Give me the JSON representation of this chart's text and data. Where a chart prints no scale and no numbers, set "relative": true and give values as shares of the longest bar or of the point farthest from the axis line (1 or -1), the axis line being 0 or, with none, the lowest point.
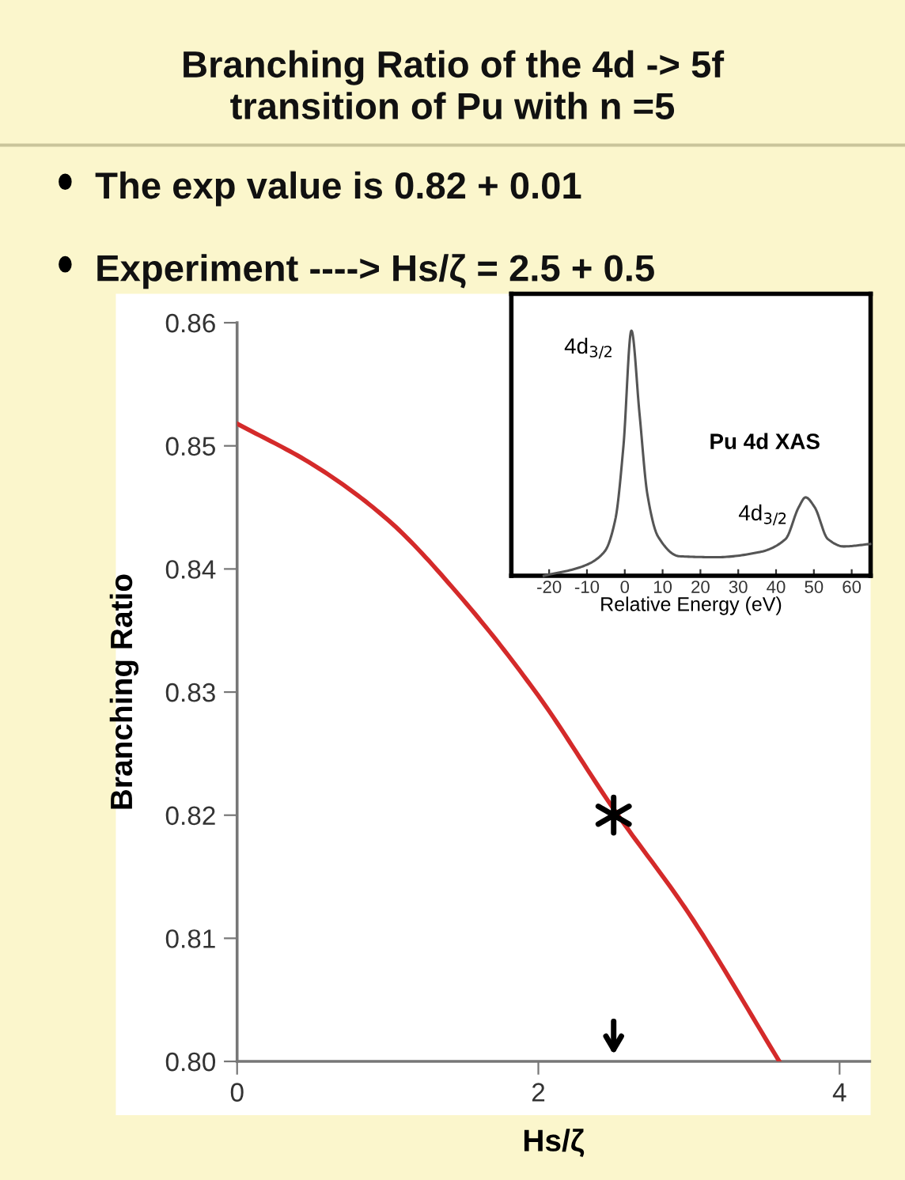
{
  "chart_data": [
    {
      "type": "line",
      "title": "Branching Ratio of the 4d -> 5f\ntransition of Pu with n =5",
      "annotations": [
        "The exp value is 0.82 + 0.01",
        "Experiment ----> Hs/ζ = 2.5 + 0.5"
      ],
      "xlabel": "Hs/ζ",
      "ylabel": "Branching Ratio",
      "xlim": [
        0,
        4.2
      ],
      "xticks": [
        0,
        2,
        4
      ],
      "ylim": [
        0.8,
        0.86
      ],
      "yticks": [
        {
          "value": 0.8,
          "label": "0.80"
        },
        0.81,
        0.82,
        0.83,
        0.84,
        0.85,
        0.86
      ],
      "grid": false,
      "legend": false,
      "series": [
        {
          "color": "#d42a2a",
          "x": [
            0,
            0.5,
            1.0,
            1.5,
            2.0,
            2.5,
            3.0,
            3.6
          ],
          "values": [
            0.8518,
            0.8485,
            0.844,
            0.8375,
            0.8297,
            0.8205,
            0.812,
            0.8
          ]
        },
        {
          "type": "scatter",
          "marker": "cross",
          "color": "#000000",
          "x": [
            2.5
          ],
          "values": [
            0.82
          ]
        }
      ]
    },
    {
      "type": "line",
      "relative": true,
      "xlabel": "Relative Energy (eV)",
      "xlim": [
        -30,
        65
      ],
      "xticks": [
        -20,
        -10,
        0,
        10,
        20,
        30,
        40,
        50,
        60
      ],
      "annotations": [
        {
          "text": "4d$_{3/2}$",
          "x": 1.75,
          "y": 1.0
        },
        "Pu 4d XAS",
        {
          "text": "4d$_{3/2}$",
          "x": 47.8,
          "y": 0.32
        }
      ],
      "grid": false,
      "legend": false,
      "series": [
        {
          "color": "#555555",
          "x": [
            -21.4,
            -10.9,
            -5.3,
            -2.5,
            -0.35,
            1.75,
            3.9,
            6.0,
            8.8,
            14.4,
            24.2,
            35.4,
            42.5,
            46,
            47.8,
            50.2,
            53.7,
            57.9,
            64.9
          ],
          "values": [
            0,
            0.04,
            0.1,
            0.23,
            0.53,
            1.0,
            0.66,
            0.33,
            0.16,
            0.08,
            0.076,
            0.096,
            0.15,
            0.28,
            0.32,
            0.28,
            0.15,
            0.12,
            0.13
          ]
        }
      ]
    }
  ]
}
